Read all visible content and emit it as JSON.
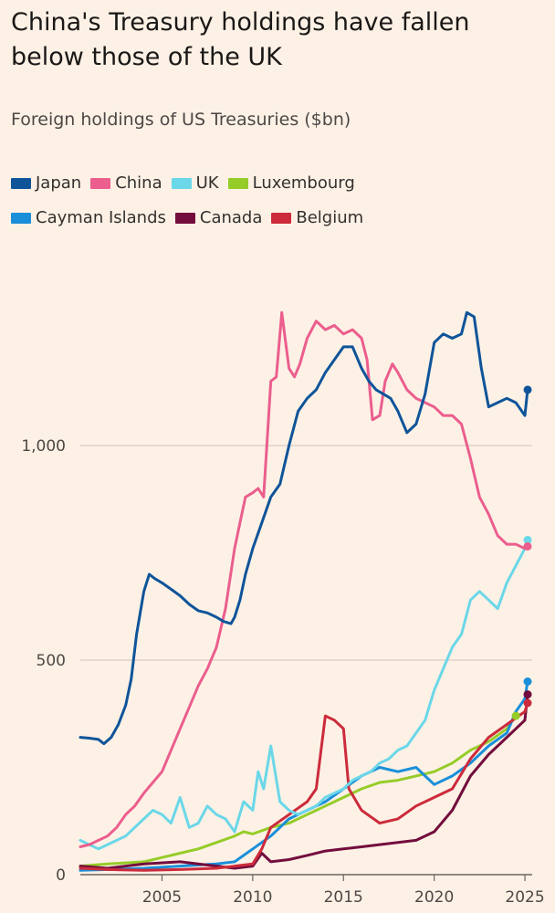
{
  "chart_data": {
    "type": "line",
    "title": "China's Treasury holdings have fallen below those of the UK",
    "subtitle": "Foreign holdings of US Treasuries ($bn)",
    "xlabel": "",
    "ylabel": "",
    "xlim": [
      2000.5,
      2025.4
    ],
    "ylim": [
      0,
      1400
    ],
    "x_ticks": [
      2005,
      2010,
      2015,
      2020,
      2025
    ],
    "x_tick_labels": [
      "2005",
      "2010",
      "2015",
      "2020",
      "2025"
    ],
    "y_ticks": [
      0,
      500,
      1000
    ],
    "y_tick_labels": [
      "0",
      "500",
      "1,000"
    ],
    "grid": "horizontal",
    "legend_position": "top-left",
    "series": [
      {
        "name": "Japan",
        "color": "#0f5499",
        "x": [
          2000.5,
          2001.0,
          2001.5,
          2001.8,
          2002.2,
          2002.6,
          2003.0,
          2003.3,
          2003.6,
          2004.0,
          2004.3,
          2004.6,
          2005.0,
          2005.5,
          2006.0,
          2006.5,
          2007.0,
          2007.5,
          2008.0,
          2008.4,
          2008.8,
          2009.0,
          2009.3,
          2009.6,
          2010.0,
          2010.5,
          2011.0,
          2011.5,
          2012.0,
          2012.5,
          2013.0,
          2013.5,
          2014.0,
          2014.5,
          2015.0,
          2015.5,
          2016.0,
          2016.4,
          2016.8,
          2017.2,
          2017.6,
          2018.0,
          2018.5,
          2019.0,
          2019.5,
          2020.0,
          2020.5,
          2021.0,
          2021.5,
          2021.8,
          2022.2,
          2022.6,
          2023.0,
          2023.5,
          2024.0,
          2024.5,
          2025.0,
          2025.15
        ],
        "y": [
          320,
          318,
          315,
          305,
          320,
          350,
          395,
          455,
          560,
          660,
          700,
          690,
          680,
          665,
          650,
          630,
          615,
          610,
          600,
          590,
          585,
          600,
          640,
          700,
          760,
          820,
          880,
          910,
          1000,
          1080,
          1110,
          1130,
          1170,
          1200,
          1230,
          1230,
          1180,
          1150,
          1130,
          1120,
          1110,
          1080,
          1030,
          1050,
          1120,
          1240,
          1260,
          1250,
          1260,
          1310,
          1300,
          1180,
          1090,
          1100,
          1110,
          1100,
          1070,
          1130
        ]
      },
      {
        "name": "China",
        "color": "#eb5e8d",
        "x": [
          2000.5,
          2001.0,
          2001.5,
          2002.0,
          2002.5,
          2003.0,
          2003.5,
          2004.0,
          2004.5,
          2005.0,
          2005.5,
          2006.0,
          2006.5,
          2007.0,
          2007.5,
          2008.0,
          2008.5,
          2009.0,
          2009.3,
          2009.6,
          2010.0,
          2010.3,
          2010.6,
          2011.0,
          2011.3,
          2011.6,
          2012.0,
          2012.3,
          2012.6,
          2013.0,
          2013.5,
          2014.0,
          2014.5,
          2015.0,
          2015.5,
          2016.0,
          2016.3,
          2016.6,
          2017.0,
          2017.3,
          2017.7,
          2018.0,
          2018.5,
          2019.0,
          2019.5,
          2020.0,
          2020.5,
          2021.0,
          2021.5,
          2022.0,
          2022.5,
          2023.0,
          2023.5,
          2024.0,
          2024.5,
          2025.0,
          2025.15
        ],
        "y": [
          65,
          70,
          80,
          90,
          110,
          140,
          160,
          190,
          215,
          240,
          290,
          340,
          390,
          440,
          480,
          530,
          620,
          760,
          820,
          880,
          890,
          900,
          880,
          1150,
          1160,
          1310,
          1180,
          1160,
          1190,
          1250,
          1290,
          1270,
          1280,
          1260,
          1270,
          1250,
          1200,
          1060,
          1070,
          1150,
          1190,
          1170,
          1130,
          1110,
          1100,
          1090,
          1070,
          1070,
          1050,
          970,
          880,
          840,
          790,
          770,
          770,
          760,
          765
        ]
      },
      {
        "name": "UK",
        "color": "#6bd7e8",
        "x": [
          2000.5,
          2001.0,
          2001.5,
          2002.0,
          2002.5,
          2003.0,
          2003.5,
          2004.0,
          2004.5,
          2005.0,
          2005.5,
          2006.0,
          2006.5,
          2007.0,
          2007.5,
          2008.0,
          2008.5,
          2009.0,
          2009.5,
          2010.0,
          2010.3,
          2010.6,
          2011.0,
          2011.5,
          2012.0,
          2012.5,
          2013.0,
          2013.5,
          2014.0,
          2014.5,
          2015.0,
          2015.5,
          2016.0,
          2016.5,
          2017.0,
          2017.5,
          2018.0,
          2018.5,
          2019.0,
          2019.5,
          2020.0,
          2020.5,
          2021.0,
          2021.5,
          2022.0,
          2022.5,
          2023.0,
          2023.5,
          2024.0,
          2024.5,
          2025.0,
          2025.15
        ],
        "y": [
          80,
          70,
          60,
          70,
          80,
          90,
          110,
          130,
          150,
          140,
          120,
          180,
          110,
          120,
          160,
          140,
          130,
          100,
          170,
          150,
          240,
          200,
          300,
          170,
          150,
          140,
          150,
          160,
          180,
          190,
          200,
          220,
          230,
          240,
          260,
          270,
          290,
          300,
          330,
          360,
          430,
          480,
          530,
          560,
          640,
          660,
          640,
          620,
          680,
          720,
          760,
          780
        ]
      },
      {
        "name": "Luxembourg",
        "color": "#96cc28",
        "x": [
          2000.5,
          2002.0,
          2004.0,
          2005.0,
          2006.0,
          2007.0,
          2008.0,
          2009.0,
          2009.5,
          2010.0,
          2011.0,
          2012.0,
          2013.0,
          2014.0,
          2015.0,
          2016.0,
          2017.0,
          2018.0,
          2019.0,
          2020.0,
          2021.0,
          2022.0,
          2023.0,
          2024.0,
          2024.5
        ],
        "y": [
          20,
          25,
          30,
          40,
          50,
          60,
          75,
          90,
          100,
          95,
          110,
          120,
          140,
          160,
          180,
          200,
          215,
          220,
          230,
          240,
          260,
          290,
          310,
          340,
          370
        ]
      },
      {
        "name": "Cayman Islands",
        "color": "#1a8fd9",
        "x": [
          2000.5,
          2002.0,
          2004.0,
          2006.0,
          2008.0,
          2009.0,
          2010.0,
          2011.0,
          2012.0,
          2013.0,
          2014.0,
          2015.0,
          2016.0,
          2017.0,
          2018.0,
          2019.0,
          2020.0,
          2021.0,
          2022.0,
          2023.0,
          2024.0,
          2024.5,
          2025.0,
          2025.15
        ],
        "y": [
          10,
          12,
          15,
          20,
          25,
          30,
          60,
          90,
          130,
          150,
          170,
          200,
          230,
          250,
          240,
          250,
          210,
          230,
          260,
          300,
          330,
          380,
          410,
          450
        ]
      },
      {
        "name": "Canada",
        "color": "#730d3d",
        "x": [
          2000.5,
          2002.0,
          2004.0,
          2006.0,
          2008.0,
          2009.0,
          2010.0,
          2010.5,
          2011.0,
          2012.0,
          2013.0,
          2014.0,
          2015.0,
          2016.0,
          2017.0,
          2018.0,
          2019.0,
          2020.0,
          2021.0,
          2022.0,
          2023.0,
          2024.0,
          2025.0,
          2025.15
        ],
        "y": [
          20,
          15,
          25,
          30,
          20,
          15,
          20,
          50,
          30,
          35,
          45,
          55,
          60,
          65,
          70,
          75,
          80,
          100,
          150,
          230,
          280,
          320,
          360,
          420
        ]
      },
      {
        "name": "Belgium",
        "color": "#cc2b3b",
        "x": [
          2000.5,
          2002.0,
          2004.0,
          2006.0,
          2008.0,
          2009.0,
          2010.0,
          2010.5,
          2011.0,
          2012.0,
          2013.0,
          2013.5,
          2014.0,
          2014.5,
          2015.0,
          2015.3,
          2016.0,
          2017.0,
          2018.0,
          2019.0,
          2020.0,
          2021.0,
          2022.0,
          2023.0,
          2024.0,
          2025.0,
          2025.15
        ],
        "y": [
          15,
          12,
          10,
          12,
          15,
          20,
          25,
          60,
          110,
          140,
          170,
          200,
          370,
          360,
          340,
          200,
          150,
          120,
          130,
          160,
          180,
          200,
          270,
          320,
          350,
          380,
          400
        ]
      }
    ]
  }
}
